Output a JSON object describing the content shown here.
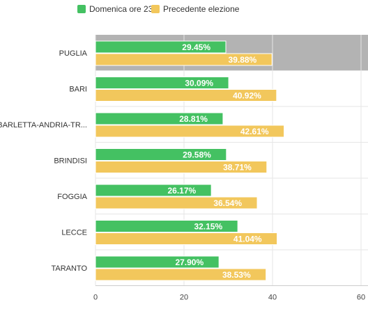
{
  "chart_data": {
    "type": "bar",
    "orientation": "horizontal",
    "categories": [
      "PUGLIA",
      "BARI",
      "BARLETTA-ANDRIA-TR...",
      "BRINDISI",
      "FOGGIA",
      "LECCE",
      "TARANTO"
    ],
    "series": [
      {
        "name": "Domenica ore 23",
        "color": "#44c162",
        "values": [
          29.45,
          30.09,
          28.81,
          29.58,
          26.17,
          32.15,
          27.9
        ],
        "labels": [
          "29.45%",
          "30.09%",
          "28.81%",
          "29.58%",
          "26.17%",
          "32.15%",
          "27.90%"
        ]
      },
      {
        "name": "Precedente elezione",
        "color": "#f2c75c",
        "values": [
          39.88,
          40.92,
          42.61,
          38.71,
          36.54,
          41.04,
          38.53
        ],
        "labels": [
          "39.88%",
          "40.92%",
          "42.61%",
          "38.71%",
          "36.54%",
          "41.04%",
          "38.53%"
        ]
      }
    ],
    "xlim": [
      0,
      60
    ],
    "xticks": [
      "0",
      "20",
      "40",
      "60"
    ],
    "highlighted_category": "PUGLIA",
    "highlight_color": "#b3b3b3",
    "gridlines": true,
    "legend_position": "top-left",
    "title": "",
    "xlabel": "",
    "ylabel": ""
  }
}
